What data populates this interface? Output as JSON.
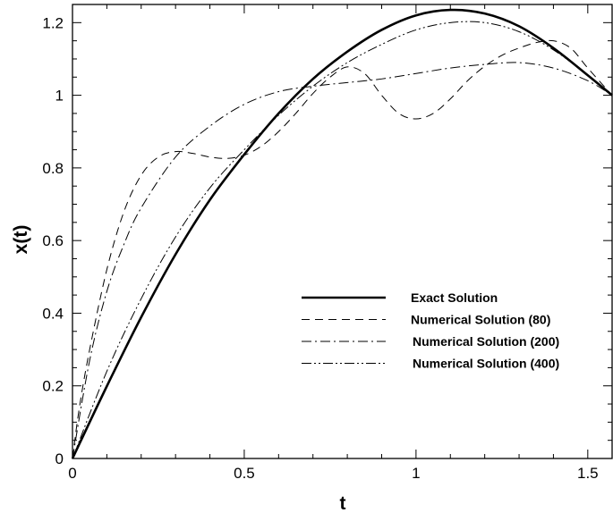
{
  "chart_data": {
    "type": "line",
    "title": "",
    "xlabel": "t",
    "ylabel": "x(t)",
    "xlim": [
      0,
      1.5708
    ],
    "ylim": [
      0,
      1.25
    ],
    "x_ticks": [
      0,
      0.5,
      1,
      1.5
    ],
    "x_tick_labels": [
      "0",
      "0.5",
      "1",
      "1.5"
    ],
    "x_minor_step": 0.1,
    "y_ticks": [
      0,
      0.2,
      0.4,
      0.6,
      0.8,
      1,
      1.2
    ],
    "y_tick_labels": [
      "0",
      "0.2",
      "0.4",
      "0.6",
      "0.8",
      "1",
      "1.2"
    ],
    "y_minor_step": 0.05,
    "grid": false,
    "legend_position": "lower-right",
    "series": [
      {
        "name": "Exact Solution",
        "style": "solid",
        "x": [
          0,
          0.1,
          0.2,
          0.3,
          0.4,
          0.5,
          0.6,
          0.7,
          0.8,
          0.9,
          1.0,
          1.1,
          1.2,
          1.3,
          1.4,
          1.5,
          1.5708
        ],
        "y": [
          0,
          0.199,
          0.389,
          0.562,
          0.712,
          0.837,
          0.95,
          1.045,
          1.12,
          1.18,
          1.22,
          1.235,
          1.225,
          1.19,
          1.13,
          1.055,
          1.0
        ]
      },
      {
        "name": "Numerical Solution (80)",
        "style": "dashed",
        "x": [
          0,
          0.02,
          0.05,
          0.1,
          0.15,
          0.2,
          0.25,
          0.3,
          0.35,
          0.4,
          0.45,
          0.5,
          0.55,
          0.6,
          0.65,
          0.7,
          0.75,
          0.8,
          0.85,
          0.9,
          0.95,
          1.0,
          1.05,
          1.1,
          1.15,
          1.2,
          1.25,
          1.3,
          1.35,
          1.4,
          1.45,
          1.5,
          1.5708
        ],
        "y": [
          0,
          0.14,
          0.3,
          0.52,
          0.68,
          0.78,
          0.83,
          0.845,
          0.84,
          0.83,
          0.826,
          0.835,
          0.86,
          0.9,
          0.95,
          1.005,
          1.05,
          1.078,
          1.06,
          1.0,
          0.95,
          0.935,
          0.95,
          0.99,
          1.04,
          1.08,
          1.11,
          1.13,
          1.145,
          1.15,
          1.13,
          1.075,
          1.0
        ]
      },
      {
        "name": "Numerical Solution (200)",
        "style": "dashdot",
        "x": [
          0,
          0.05,
          0.1,
          0.15,
          0.2,
          0.3,
          0.4,
          0.5,
          0.6,
          0.7,
          0.8,
          0.9,
          1.0,
          1.1,
          1.2,
          1.3,
          1.4,
          1.5,
          1.5708
        ],
        "y": [
          0,
          0.27,
          0.46,
          0.59,
          0.69,
          0.83,
          0.915,
          0.975,
          1.01,
          1.025,
          1.035,
          1.045,
          1.06,
          1.075,
          1.085,
          1.09,
          1.075,
          1.04,
          1.0
        ]
      },
      {
        "name": "Numerical Solution (400)",
        "style": "dashdotdot",
        "x": [
          0,
          0.1,
          0.2,
          0.3,
          0.4,
          0.5,
          0.6,
          0.7,
          0.8,
          0.9,
          1.0,
          1.1,
          1.2,
          1.3,
          1.4,
          1.5,
          1.5708
        ],
        "y": [
          0,
          0.24,
          0.44,
          0.61,
          0.745,
          0.85,
          0.945,
          1.025,
          1.09,
          1.14,
          1.18,
          1.2,
          1.2,
          1.175,
          1.125,
          1.055,
          1.0
        ]
      }
    ]
  }
}
